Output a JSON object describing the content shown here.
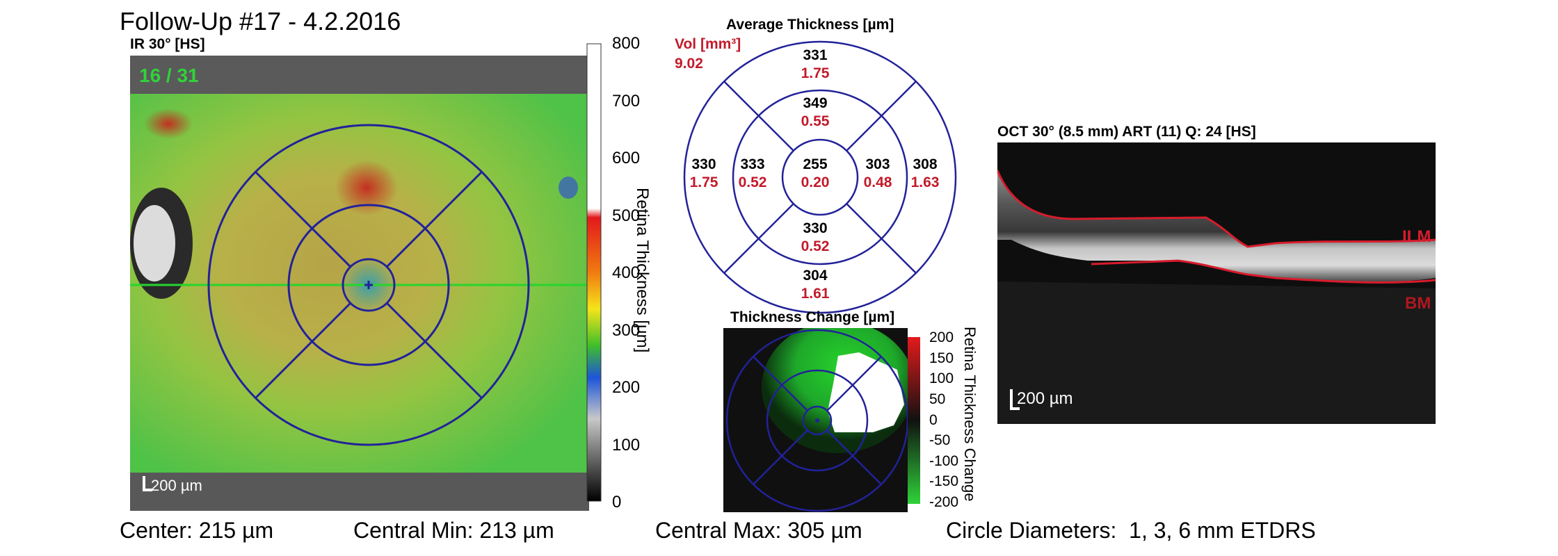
{
  "header": {
    "title": "Follow-Up #17 - 4.2.2016"
  },
  "ir_panel": {
    "label": "IR 30° [HS]",
    "counter": "16 / 31",
    "scale_bar": "200 µm"
  },
  "colorbar": {
    "ticks": [
      "800",
      "700",
      "600",
      "500",
      "400",
      "300",
      "200",
      "100",
      "0"
    ],
    "axis_label": "Retina Thickness [µm]"
  },
  "avg_thickness": {
    "title": "Average Thickness [µm]",
    "vol_label": "Vol [mm³]",
    "vol_value": "9.02",
    "sectors": {
      "outer_top": {
        "thickness": "331",
        "volume": "1.75"
      },
      "inner_top": {
        "thickness": "349",
        "volume": "0.55"
      },
      "outer_left": {
        "thickness": "330",
        "volume": "1.75"
      },
      "inner_left": {
        "thickness": "333",
        "volume": "0.52"
      },
      "center": {
        "thickness": "255",
        "volume": "0.20"
      },
      "inner_right": {
        "thickness": "303",
        "volume": "0.48"
      },
      "outer_right": {
        "thickness": "308",
        "volume": "1.63"
      },
      "inner_bottom": {
        "thickness": "330",
        "volume": "0.52"
      },
      "outer_bottom": {
        "thickness": "304",
        "volume": "1.61"
      }
    }
  },
  "thickness_change": {
    "title": "Thickness Change [µm]",
    "ticks": [
      "200",
      "150",
      "100",
      "50",
      "0",
      "-50",
      "-100",
      "-150",
      "-200"
    ],
    "axis_label": "Retina Thickness Change"
  },
  "oct_panel": {
    "label": "OCT 30° (8.5 mm) ART (11) Q: 24 [HS]",
    "ilm_label": "ILM",
    "bm_label": "BM",
    "scale_bar": "200 µm"
  },
  "footer": {
    "center": "Center: 215 µm",
    "central_min": "Central Min: 213 µm",
    "central_max": "Central Max: 305 µm",
    "circle_diameters": "Circle Diameters:  1, 3, 6 mm ETDRS"
  },
  "colors": {
    "grid_blue": "#22229a",
    "value_red": "#c21a2a",
    "oct_red": "#d81c2c"
  }
}
